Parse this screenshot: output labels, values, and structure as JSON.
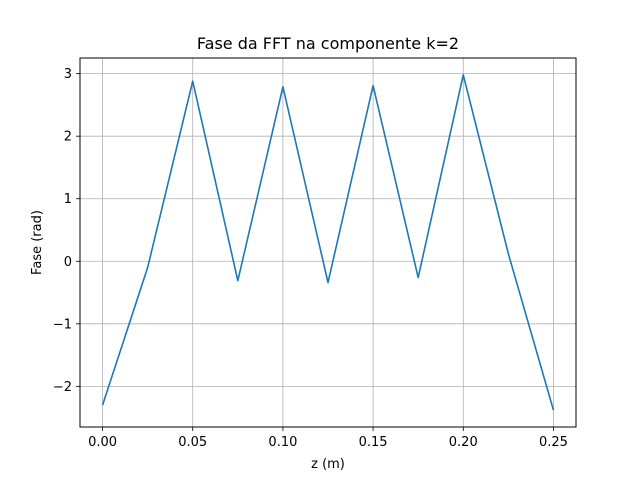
{
  "chart_data": {
    "type": "line",
    "title": "Fase da FFT na componente k=2",
    "xlabel": "z (m)",
    "ylabel": "Fase (rad)",
    "xlim": [
      -0.0125,
      0.2625
    ],
    "ylim": [
      -2.65,
      3.25
    ],
    "xticks": [
      0.0,
      0.05,
      0.1,
      0.15,
      0.2,
      0.25
    ],
    "xtick_labels": [
      "0.00",
      "0.05",
      "0.10",
      "0.15",
      "0.20",
      "0.25"
    ],
    "yticks": [
      -2,
      -1,
      0,
      1,
      2,
      3
    ],
    "ytick_labels": [
      "−2",
      "−1",
      "0",
      "1",
      "2",
      "3"
    ],
    "grid": true,
    "line_color": "#1f77b4",
    "series": [
      {
        "x": [
          0.0,
          0.025,
          0.05,
          0.075,
          0.1,
          0.125,
          0.15,
          0.175,
          0.2,
          0.225,
          0.25
        ],
        "y": [
          -2.3,
          -0.1,
          2.88,
          -0.31,
          2.79,
          -0.34,
          2.81,
          -0.26,
          2.98,
          0.12,
          -2.38
        ]
      }
    ]
  }
}
